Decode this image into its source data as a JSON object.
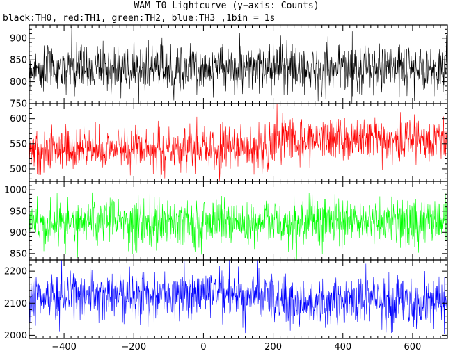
{
  "title": "WAM T0 Lightcurve (y−axis: Counts)",
  "subtitle": "black:TH0, red:TH1, green:TH2, blue:TH3 ,1bin = 1s",
  "chart_data": {
    "type": "line",
    "xlim": [
      -500,
      700
    ],
    "x_ticks": [
      -400,
      -200,
      0,
      200,
      400,
      600
    ],
    "x_minor_step": 20,
    "bin_seconds": 1,
    "grid": false,
    "panels": [
      {
        "series_name": "TH0",
        "color": "#000000",
        "ylim": [
          750,
          930
        ],
        "y_ticks": [
          750,
          800,
          850,
          900
        ],
        "y_minor_step": 10,
        "mean": 830,
        "std": 27,
        "segments": [
          {
            "x_start": -500,
            "x_end": 700,
            "level": 830
          }
        ]
      },
      {
        "series_name": "TH1",
        "color": "#ff0000",
        "ylim": [
          475,
          630
        ],
        "y_ticks": [
          500,
          550,
          600
        ],
        "y_minor_step": 10,
        "std": 22,
        "segments": [
          {
            "x_start": -500,
            "x_end": 200,
            "level": 540
          },
          {
            "x_start": 200,
            "x_end": 700,
            "level": 560
          }
        ]
      },
      {
        "series_name": "TH2",
        "color": "#00ff00",
        "ylim": [
          835,
          1020
        ],
        "y_ticks": [
          850,
          900,
          950,
          1000
        ],
        "y_minor_step": 10,
        "mean": 925,
        "std": 28,
        "segments": [
          {
            "x_start": -500,
            "x_end": 700,
            "level": 925
          }
        ]
      },
      {
        "series_name": "TH3",
        "color": "#0000ff",
        "ylim": [
          1990,
          2235
        ],
        "y_ticks": [
          2000,
          2100,
          2200
        ],
        "y_minor_step": 20,
        "std": 38,
        "segments": [
          {
            "x_start": -500,
            "x_end": 200,
            "level": 2125
          },
          {
            "x_start": 200,
            "x_end": 700,
            "level": 2105
          }
        ]
      }
    ]
  }
}
